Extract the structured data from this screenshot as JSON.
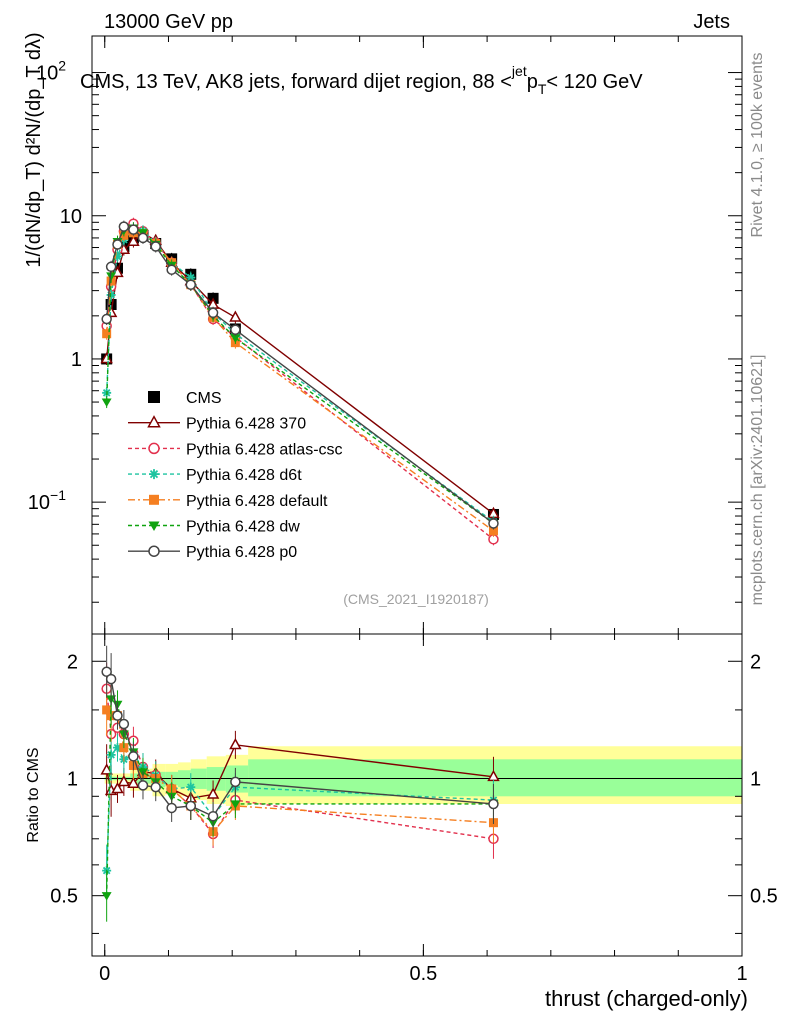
{
  "header": {
    "left": "13000 GeV pp",
    "right": "Jets"
  },
  "side_labels": {
    "rivet": "Rivet 4.1.0, ≥ 100k events",
    "mcplots": "mcplots.cern.ch [arXiv:2401.10621]"
  },
  "watermark": "(CMS_2021_I1920187)",
  "chart_data": {
    "type": "line",
    "title": "CMS, 13 TeV, AK8 jets, forward dijet region, 88 <p_T^{jet}< 120 GeV",
    "ylabel": "1/(dN/dp_T) d²N/(dp_T dλ)",
    "xlabel": "thrust (charged-only)",
    "ratio_ylabel": "Ratio to CMS",
    "xlim": [
      -0.02,
      1.0
    ],
    "ylim": [
      0.012,
      180
    ],
    "yscale": "log",
    "ratio_ylim": [
      0.35,
      2.35
    ],
    "ratio_yscale": "log",
    "x_ticks": [
      {
        "v": 0,
        "label": "0"
      },
      {
        "v": 0.5,
        "label": "0.5"
      },
      {
        "v": 1,
        "label": "1"
      }
    ],
    "y_ticks": [
      {
        "v": 0.1,
        "label": "10",
        "exp": "−1"
      },
      {
        "v": 1,
        "label": "1",
        "exp": ""
      },
      {
        "v": 10,
        "label": "10",
        "exp": ""
      },
      {
        "v": 100,
        "label": "10",
        "exp": "2"
      }
    ],
    "ratio_ticks": [
      {
        "v": 0.5,
        "label": "0.5"
      },
      {
        "v": 1,
        "label": "1"
      },
      {
        "v": 2,
        "label": "2"
      }
    ],
    "x": [
      0.003,
      0.01,
      0.02,
      0.03,
      0.045,
      0.06,
      0.08,
      0.105,
      0.135,
      0.17,
      0.205,
      0.61
    ],
    "band": {
      "edges": [
        0,
        0.04,
        0.075,
        0.095,
        0.115,
        0.135,
        0.16,
        0.19,
        0.225,
        1.0
      ],
      "inner": [
        [
          0.99,
          1.01
        ],
        [
          0.97,
          1.03
        ],
        [
          0.95,
          1.04
        ],
        [
          0.96,
          1.04
        ],
        [
          0.95,
          1.05
        ],
        [
          0.94,
          1.06
        ],
        [
          0.93,
          1.07
        ],
        [
          0.92,
          1.08
        ],
        [
          0.9,
          1.12
        ]
      ],
      "outer": [
        [
          0.97,
          1.03
        ],
        [
          0.93,
          1.06
        ],
        [
          0.9,
          1.09
        ],
        [
          0.91,
          1.09
        ],
        [
          0.9,
          1.1
        ],
        [
          0.88,
          1.12
        ],
        [
          0.86,
          1.14
        ],
        [
          0.85,
          1.15
        ],
        [
          0.86,
          1.21
        ]
      ],
      "inner_color": "#99ff99",
      "outer_color": "#ffff99"
    },
    "series": [
      {
        "name": "CMS",
        "color": "#000000",
        "marker": "square-filled",
        "dash": "none",
        "data": true,
        "values": [
          1.0,
          2.4,
          4.3,
          6.1,
          7.0,
          7.3,
          6.4,
          5.0,
          3.9,
          2.65,
          1.62,
          0.082
        ],
        "ratios": [
          1,
          1,
          1,
          1,
          1,
          1,
          1,
          1,
          1,
          1,
          1,
          1
        ]
      },
      {
        "name": "Pythia 6.428 370",
        "color": "#800000",
        "marker": "triangle-open",
        "dash": "none",
        "values": [
          1.0,
          2.1,
          4.0,
          5.8,
          6.6,
          7.6,
          6.7,
          4.7,
          3.5,
          2.4,
          1.95,
          0.083
        ],
        "ratios": [
          1.05,
          0.93,
          0.94,
          0.98,
          0.97,
          1.04,
          1.03,
          0.94,
          0.89,
          0.91,
          1.22,
          1.01
        ]
      },
      {
        "name": "Pythia 6.428 atlas-csc",
        "color": "#e2304d",
        "marker": "circle-open",
        "dash": "4,3",
        "values": [
          1.7,
          3.2,
          5.8,
          7.8,
          8.8,
          7.8,
          6.5,
          4.7,
          3.3,
          1.9,
          1.42,
          0.055
        ],
        "ratios": [
          1.7,
          1.3,
          1.35,
          1.3,
          1.25,
          1.07,
          1.02,
          0.94,
          0.85,
          0.72,
          0.88,
          0.7
        ]
      },
      {
        "name": "Pythia 6.428 d6t",
        "color": "#1dc4a0",
        "marker": "star",
        "dash": "4,3",
        "values": [
          0.58,
          2.8,
          5.2,
          6.8,
          8.0,
          7.8,
          6.5,
          4.7,
          3.7,
          2.1,
          1.5,
          0.073
        ],
        "ratios": [
          0.58,
          1.15,
          1.2,
          1.12,
          1.15,
          1.07,
          1.02,
          0.94,
          0.95,
          0.8,
          0.95,
          0.88
        ]
      },
      {
        "name": "Pythia 6.428 default",
        "color": "#f57f21",
        "marker": "square-filled",
        "dash": "7,3,2,3",
        "values": [
          1.5,
          3.5,
          6.3,
          7.3,
          7.6,
          7.5,
          6.4,
          4.7,
          3.3,
          1.95,
          1.3,
          0.063
        ],
        "ratios": [
          1.5,
          1.45,
          1.45,
          1.2,
          1.08,
          1.03,
          1.0,
          0.94,
          0.85,
          0.73,
          0.85,
          0.77
        ]
      },
      {
        "name": "Pythia 6.428 dw",
        "color": "#0fa30f",
        "marker": "triangle-down-filled",
        "dash": "4,3",
        "values": [
          0.5,
          3.8,
          6.6,
          7.9,
          8.2,
          7.6,
          6.3,
          4.5,
          3.3,
          2.0,
          1.4,
          0.071
        ],
        "ratios": [
          0.5,
          1.6,
          1.55,
          1.3,
          1.17,
          1.04,
          0.98,
          0.9,
          0.85,
          0.77,
          0.86,
          0.86
        ]
      },
      {
        "name": "Pythia 6.428 p0",
        "color": "#444444",
        "marker": "circle-open",
        "dash": "none",
        "values": [
          1.9,
          4.4,
          6.3,
          8.4,
          8.0,
          7.0,
          6.1,
          4.2,
          3.3,
          2.1,
          1.6,
          0.071
        ],
        "ratios": [
          1.88,
          1.8,
          1.45,
          1.38,
          1.14,
          0.96,
          0.95,
          0.84,
          0.85,
          0.8,
          0.98,
          0.86
        ]
      }
    ]
  }
}
